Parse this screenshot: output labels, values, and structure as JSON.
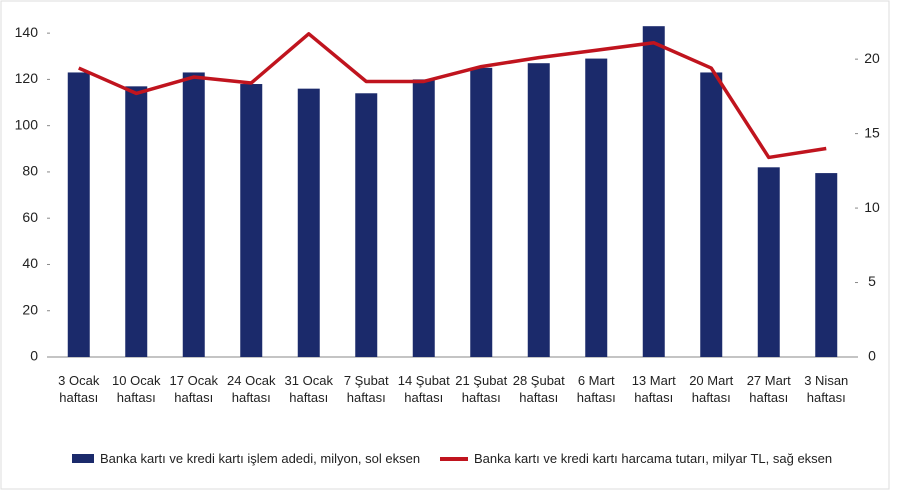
{
  "chart_data": {
    "type": "bar_line",
    "categories": [
      "3 Ocak haftası",
      "10 Ocak haftası",
      "17 Ocak haftası",
      "24 Ocak haftası",
      "31 Ocak haftası",
      "7 Şubat haftası",
      "14 Şubat haftası",
      "21 Şubat haftası",
      "28 Şubat haftası",
      "6 Mart haftası",
      "13 Mart haftası",
      "20 Mart haftası",
      "27 Mart haftası",
      "3 Nisan haftası"
    ],
    "series": [
      {
        "name": "Banka kartı ve kredi kartı işlem adedi, milyon, sol eksen",
        "type": "bar",
        "color": "#1b2a6b",
        "values": [
          123,
          117,
          123,
          118,
          116,
          114,
          120,
          125,
          127,
          129,
          143,
          123,
          82,
          79.5
        ]
      },
      {
        "name": "Banka kartı ve kredi kartı harcama tutarı, milyar TL, sağ eksen",
        "type": "line",
        "axis": "y2",
        "color": "#c0141e",
        "values": [
          19.4,
          17.7,
          18.8,
          18.4,
          21.7,
          18.5,
          18.5,
          19.5,
          20.1,
          20.6,
          21.1,
          19.4,
          13.4,
          14.0
        ]
      }
    ],
    "ylim": [
      0,
      150
    ],
    "yticks": [
      0,
      20,
      40,
      60,
      80,
      100,
      120,
      140
    ],
    "y2lim": [
      0,
      23.3
    ],
    "y2ticks": [
      0,
      5,
      10,
      15,
      20
    ]
  }
}
